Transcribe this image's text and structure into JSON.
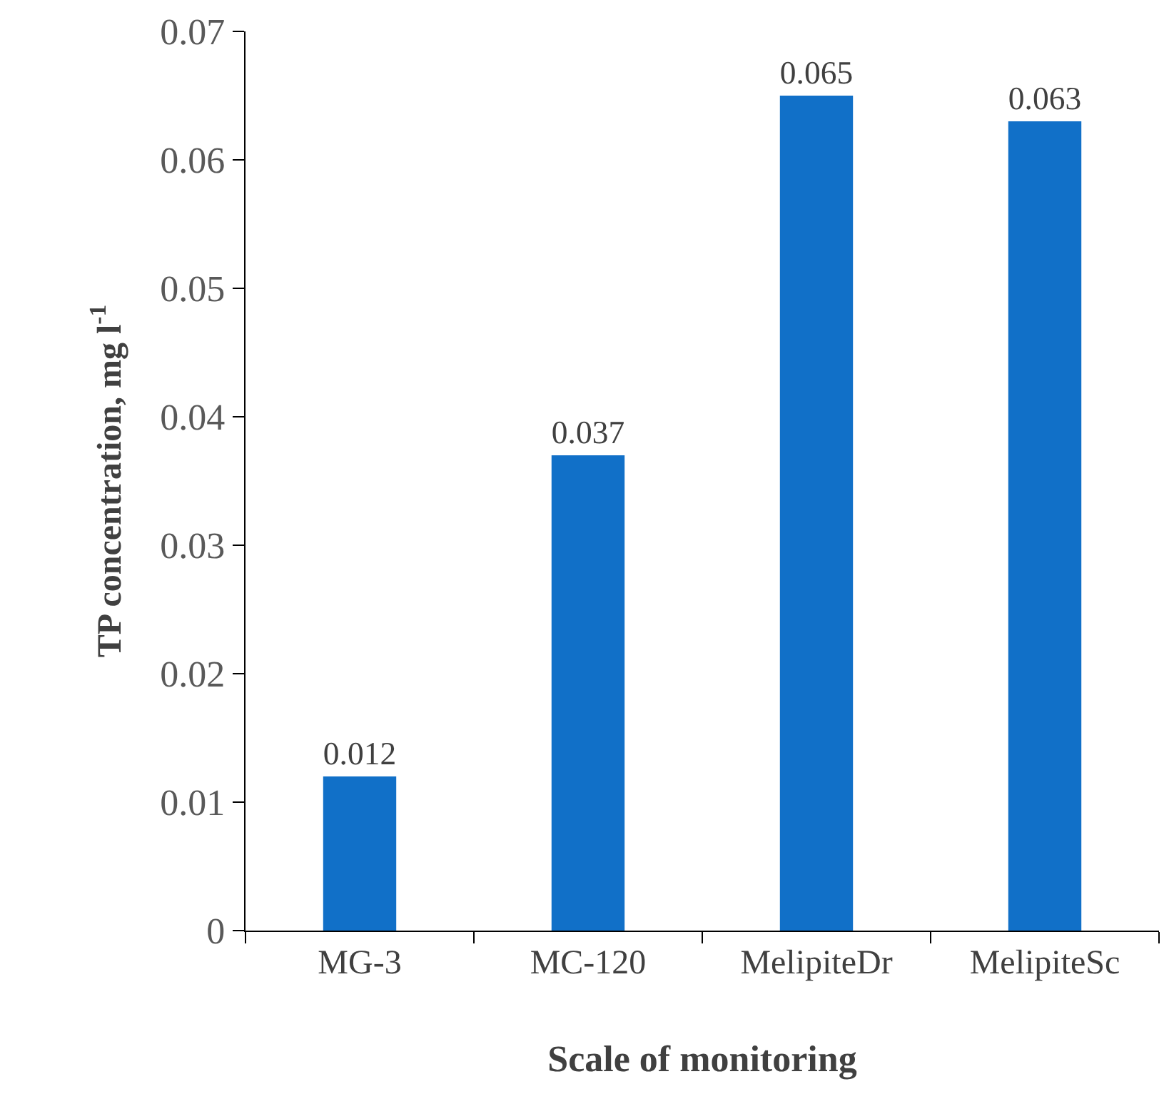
{
  "chart_data": {
    "type": "bar",
    "xlabel": "Scale of monitoring",
    "ylabel": "TP concentration, mg l$^{-1}$",
    "categories": [
      "MG-3",
      "MC-120",
      "MelipiteDr",
      "MelipiteSc"
    ],
    "values": [
      0.012,
      0.037,
      0.065,
      0.063
    ],
    "color": "#1170c8",
    "ylim": [
      0,
      0.07
    ],
    "yticks": [
      0,
      0.01,
      0.02,
      0.03,
      0.04,
      0.05,
      0.06,
      0.07
    ],
    "data_labels": true,
    "grid": false
  }
}
